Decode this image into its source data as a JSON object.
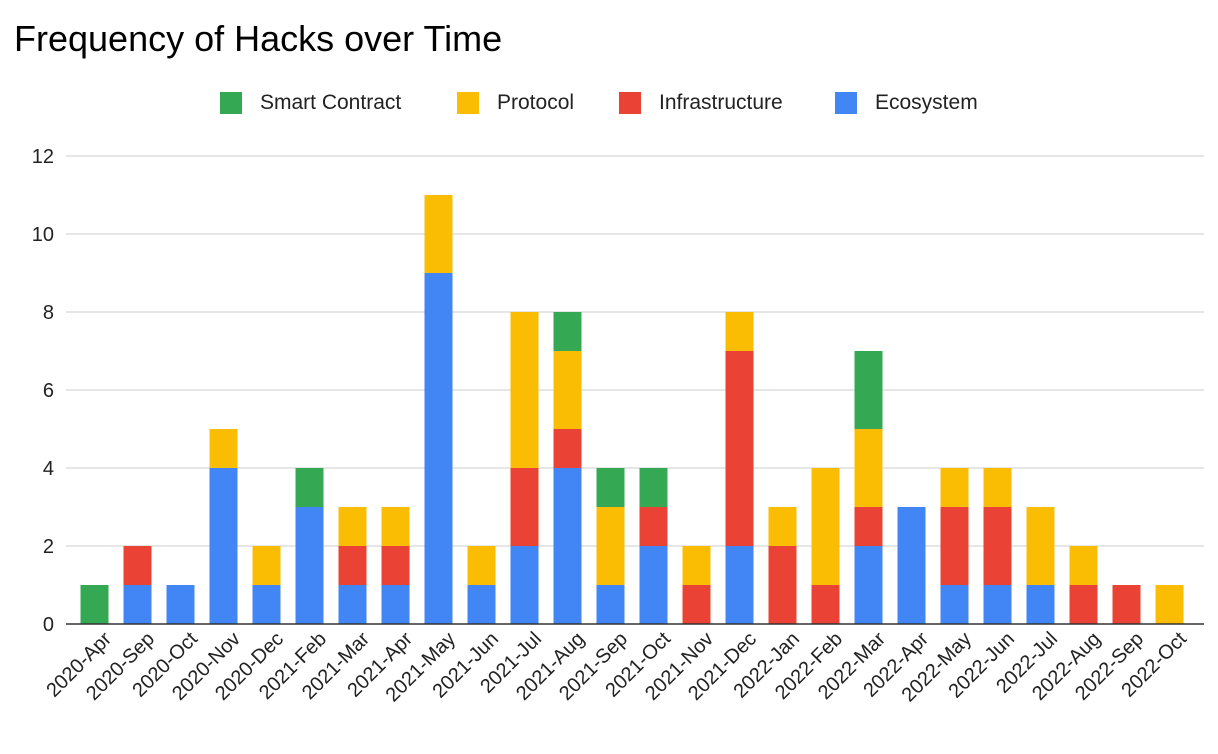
{
  "chart_data": {
    "type": "bar",
    "stacked": true,
    "title": "Frequency of Hacks over Time",
    "xlabel": "",
    "ylabel": "",
    "ylim": [
      0,
      12
    ],
    "yticks": [
      "0",
      "2",
      "4",
      "6",
      "8",
      "10",
      "12"
    ],
    "grid": true,
    "legend_position": "top-center",
    "categories": [
      "2020-Apr",
      "2020-Sep",
      "2020-Oct",
      "2020-Nov",
      "2020-Dec",
      "2021-Feb",
      "2021-Mar",
      "2021-Apr",
      "2021-May",
      "2021-Jun",
      "2021-Jul",
      "2021-Aug",
      "2021-Sep",
      "2021-Oct",
      "2021-Nov",
      "2021-Dec",
      "2022-Jan",
      "2022-Feb",
      "2022-Mar",
      "2022-Apr",
      "2022-May",
      "2022-Jun",
      "2022-Jul",
      "2022-Aug",
      "2022-Sep",
      "2022-Oct"
    ],
    "series": [
      {
        "name": "Ecosystem",
        "color": "#4285f4",
        "values": [
          0,
          1,
          1,
          4,
          1,
          3,
          1,
          1,
          9,
          1,
          2,
          4,
          1,
          2,
          0,
          2,
          0,
          0,
          2,
          3,
          1,
          1,
          1,
          0,
          0,
          0
        ]
      },
      {
        "name": "Infrastructure",
        "color": "#ea4335",
        "values": [
          0,
          1,
          0,
          0,
          0,
          0,
          1,
          1,
          0,
          0,
          2,
          1,
          0,
          1,
          1,
          5,
          2,
          1,
          1,
          0,
          2,
          2,
          0,
          1,
          1,
          0
        ]
      },
      {
        "name": "Protocol",
        "color": "#fbbc04",
        "values": [
          0,
          0,
          0,
          1,
          1,
          0,
          1,
          1,
          2,
          1,
          4,
          2,
          2,
          0,
          1,
          1,
          1,
          3,
          2,
          0,
          1,
          1,
          2,
          1,
          0,
          1
        ]
      },
      {
        "name": "Smart Contract",
        "color": "#34a853",
        "values": [
          1,
          0,
          0,
          0,
          0,
          1,
          0,
          0,
          0,
          0,
          0,
          1,
          1,
          1,
          0,
          0,
          0,
          0,
          2,
          0,
          0,
          0,
          0,
          0,
          0,
          0
        ]
      }
    ],
    "legend_order": [
      "Smart Contract",
      "Protocol",
      "Infrastructure",
      "Ecosystem"
    ]
  }
}
